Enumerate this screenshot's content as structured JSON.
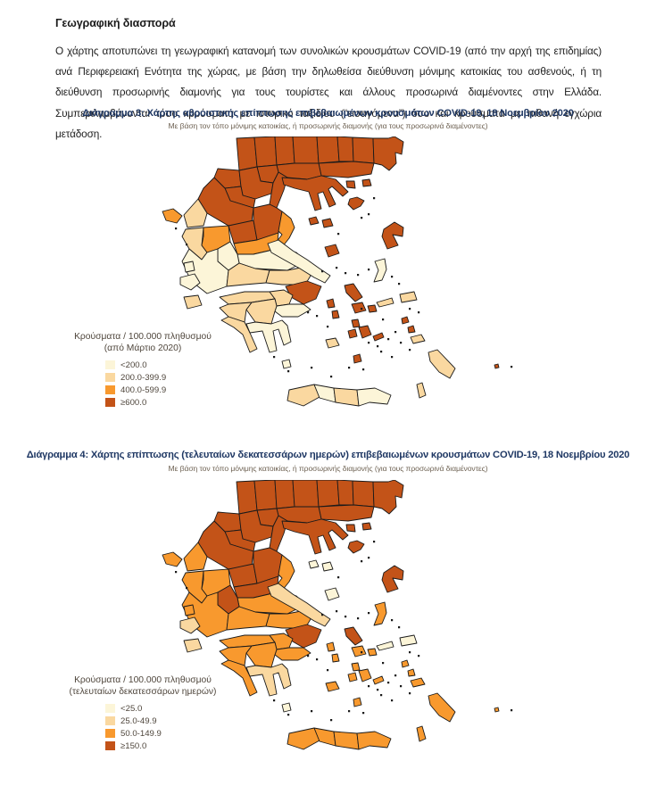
{
  "page": {
    "heading": "Γεωγραφική διασπορά",
    "paragraph": "Ο χάρτης αποτυπώνει τη γεωγραφική κατανομή των συνολικών κρουσμάτων COVID-19 (από την αρχή της επιδημίας) ανά Περιφερειακή Ενότητα της χώρας, με βάση την δηλωθείσα διεύθυνση μόνιμης κατοικίας του ασθενούς, ή τη διεύθυνση προσωρινής διαμονής για τους τουρίστες και άλλους προσωρινά διαμένοντες στην Ελλάδα.  Συμπεριλαμβάνονται τόσο κρούσματα με ιστορικό ταξιδίου (“εισαγόμενα”) όσο και κρούσματα με πιθανή εγχώρια μετάδοση."
  },
  "colors": {
    "c1": "#FCF5D8",
    "c2": "#FAD8A0",
    "c3": "#F8992E",
    "c4": "#C35318",
    "border": "#1a1a1a",
    "title": "#1F3864",
    "subtitle": "#6F6354",
    "legend_text": "#4F463C"
  },
  "map1": {
    "title": "Διάγραμμα 3: Χάρτης αθροιστικής επίπτωσης επιβεβαιωμένων κρουσμάτων COVID-19, 18 Νοεμβρίου 2020",
    "subtitle": "Με βάση τον τόπο μόνιμης κατοικίας, ή προσωρινής διαμονής (για τους προσωρινά διαμένοντες)",
    "legend": {
      "title_line1": "Κρούσματα / 100.000 πληθυσμού",
      "title_line2": "(από Μάρτιο 2020)",
      "items": [
        {
          "label": "<200.0",
          "cat": "c1"
        },
        {
          "label": "200.0-399.9",
          "cat": "c2"
        },
        {
          "label": "400.0-599.9",
          "cat": "c3"
        },
        {
          "label": "≥600.0",
          "cat": "c4"
        }
      ]
    },
    "regions": {
      "florina": "c4",
      "pella": "c4",
      "kilkis": "c4",
      "serres": "c4",
      "drama": "c4",
      "xanthi": "c4",
      "rhodopi": "c4",
      "evros": "c4",
      "kavala": "c4",
      "thessaloniki": "c4",
      "imathia": "c4",
      "kastoria": "c4",
      "kozani": "c4",
      "pieria": "c4",
      "grevena": "c4",
      "chalkidiki": "c4",
      "thasos": "c4",
      "samothrace": "c4",
      "limnos": "c4",
      "ioannina": "c4",
      "thesprotia": "c2",
      "preveza": "c2",
      "arta": "c3",
      "trikala": "c4",
      "larissa": "c4",
      "magnesia": "c3",
      "karditsa": "c3",
      "fthiotida": "c1",
      "evrytania": "c1",
      "aetolia": "c1",
      "fokida": "c2",
      "boeotia": "c2",
      "attica": "c4",
      "evia": "c1",
      "achaia": "c2",
      "corinthia": "c2",
      "argolida": "c1",
      "arcadia": "c2",
      "ilia": "c2",
      "messinia": "c2",
      "laconia": "c1",
      "chania": "c2",
      "rethymno": "c1",
      "heraklion": "c2",
      "lasithi": "c1",
      "corfu": "c3",
      "lefkada": "c1",
      "kefalonia": "c1",
      "zakynthos": "c2",
      "kythira": "c1",
      "sporades_a": "c4",
      "sporades_b": "c4",
      "skyros": "c4",
      "lesbos": "c4",
      "chios": "c1",
      "samos": "c2",
      "ikaria": "c2",
      "andros": "c4",
      "tinos": "c4",
      "mykonos": "c4",
      "syros": "c4",
      "kea": "c4",
      "kythnos": "c4",
      "paros": "c4",
      "naxos": "c4",
      "amorgos": "c4",
      "milos": "c2",
      "santorini": "c4",
      "kos": "c2",
      "kalymnos": "c4",
      "leros": "c4",
      "rhodes": "c2",
      "karpathos": "c2",
      "kastellorizo": "c4"
    }
  },
  "map2": {
    "title": "Διάγραμμα 4: Χάρτης επίπτωσης (τελευταίων δεκατεσσάρων ημερών) επιβεβαιωμένων κρουσμάτων COVID-19, 18 Νοεμβρίου 2020",
    "subtitle": "Με βάση τον τόπο μόνιμης κατοικίας, ή προσωρινής διαμονής (για τους προσωρινά διαμένοντες)",
    "legend": {
      "title_line1": "Κρούσματα / 100.000 πληθυσμού",
      "title_line2": "(τελευταίων δεκατεσσάρων ημερών)",
      "items": [
        {
          "label": "<25.0",
          "cat": "c1"
        },
        {
          "label": "25.0-49.9",
          "cat": "c2"
        },
        {
          "label": "50.0-149.9",
          "cat": "c3"
        },
        {
          "label": "≥150.0",
          "cat": "c4"
        }
      ]
    },
    "regions": {
      "florina": "c4",
      "pella": "c4",
      "kilkis": "c4",
      "serres": "c4",
      "drama": "c4",
      "xanthi": "c4",
      "rhodopi": "c4",
      "evros": "c4",
      "kavala": "c4",
      "thessaloniki": "c4",
      "imathia": "c4",
      "kastoria": "c4",
      "kozani": "c4",
      "pieria": "c4",
      "grevena": "c4",
      "chalkidiki": "c4",
      "thasos": "c4",
      "samothrace": "c4",
      "limnos": "c4",
      "ioannina": "c4",
      "thesprotia": "c3",
      "preveza": "c3",
      "arta": "c3",
      "trikala": "c4",
      "larissa": "c4",
      "magnesia": "c3",
      "karditsa": "c4",
      "fthiotida": "c3",
      "evrytania": "c4",
      "aetolia": "c3",
      "fokida": "c3",
      "boeotia": "c3",
      "attica": "c4",
      "evia": "c2",
      "achaia": "c3",
      "corinthia": "c3",
      "argolida": "c3",
      "arcadia": "c3",
      "ilia": "c3",
      "messinia": "c3",
      "laconia": "c2",
      "chania": "c3",
      "rethymno": "c3",
      "heraklion": "c3",
      "lasithi": "c3",
      "corfu": "c3",
      "lefkada": "c3",
      "kefalonia": "c2",
      "zakynthos": "c2",
      "kythira": "c1",
      "sporades_a": "c1",
      "sporades_b": "c1",
      "skyros": "c1",
      "lesbos": "c4",
      "chios": "c3",
      "samos": "c1",
      "ikaria": "c1",
      "andros": "c4",
      "tinos": "c3",
      "mykonos": "c3",
      "syros": "c3",
      "kea": "c3",
      "kythnos": "c3",
      "paros": "c3",
      "naxos": "c3",
      "amorgos": "c3",
      "milos": "c3",
      "santorini": "c3",
      "kos": "c3",
      "kalymnos": "c3",
      "leros": "c3",
      "rhodes": "c3",
      "karpathos": "c3",
      "kastellorizo": "c3"
    }
  }
}
